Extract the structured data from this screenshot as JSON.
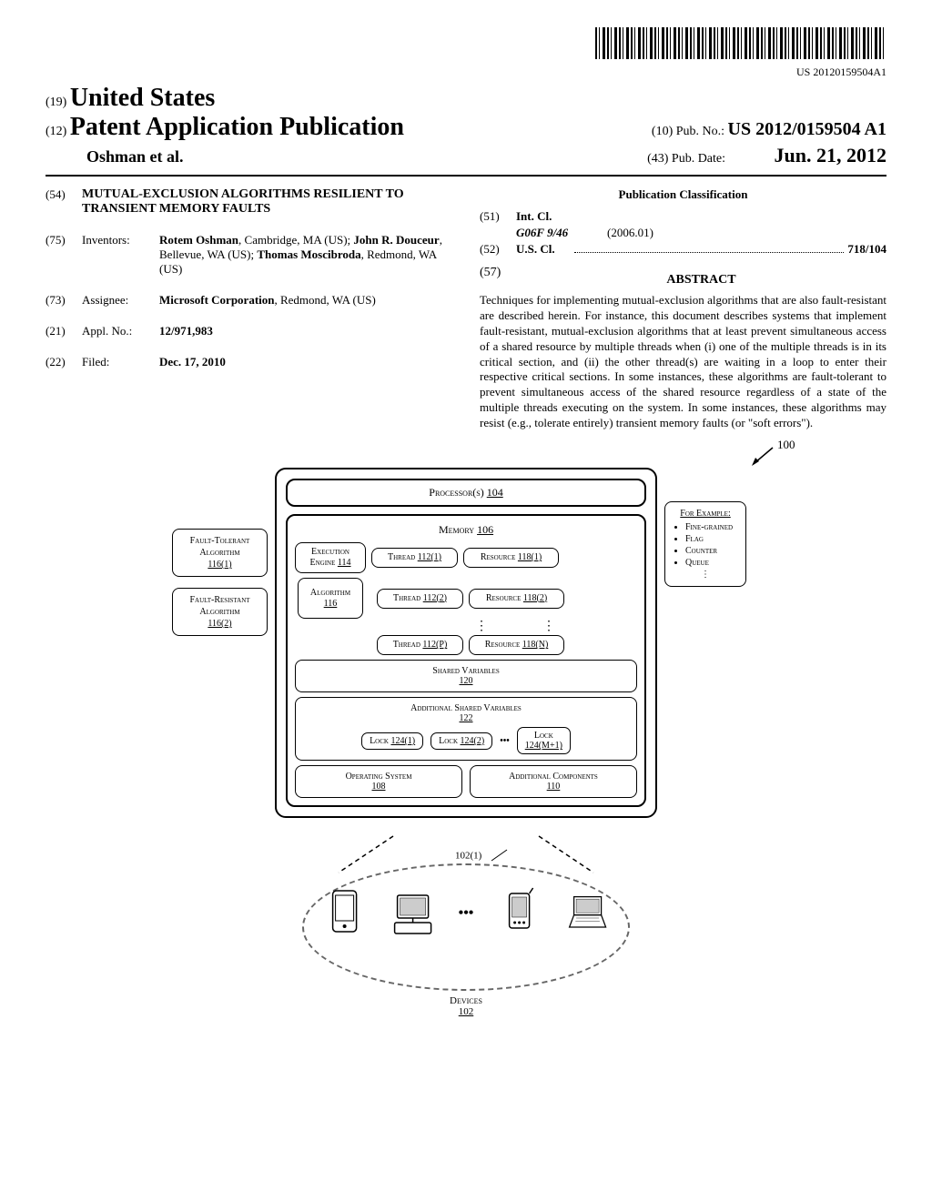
{
  "barcode_number": "US 20120159504A1",
  "header": {
    "country_code": "(19)",
    "country": "United States",
    "pub_code": "(12)",
    "pub_type": "Patent Application Publication",
    "authors": "Oshman et al.",
    "pub_no_code": "(10)",
    "pub_no_label": "Pub. No.:",
    "pub_no": "US 2012/0159504 A1",
    "date_code": "(43)",
    "date_label": "Pub. Date:",
    "date": "Jun. 21, 2012"
  },
  "left_fields": {
    "title_code": "(54)",
    "title": "MUTUAL-EXCLUSION ALGORITHMS RESILIENT TO TRANSIENT MEMORY FAULTS",
    "inventors_code": "(75)",
    "inventors_label": "Inventors:",
    "inventors": "Rotem Oshman, Cambridge, MA (US); John R. Douceur, Bellevue, WA (US); Thomas Moscibroda, Redmond, WA (US)",
    "assignee_code": "(73)",
    "assignee_label": "Assignee:",
    "assignee": "Microsoft Corporation, Redmond, WA (US)",
    "appl_code": "(21)",
    "appl_label": "Appl. No.:",
    "appl_no": "12/971,983",
    "filed_code": "(22)",
    "filed_label": "Filed:",
    "filed": "Dec. 17, 2010"
  },
  "right_fields": {
    "classification_title": "Publication Classification",
    "intcl_code": "(51)",
    "intcl_label": "Int. Cl.",
    "intcl_val": "G06F 9/46",
    "intcl_year": "(2006.01)",
    "uscl_code": "(52)",
    "uscl_label": "U.S. Cl.",
    "uscl_val": "718/104",
    "abstract_code": "(57)",
    "abstract_label": "ABSTRACT",
    "abstract_text": "Techniques for implementing mutual-exclusion algorithms that are also fault-resistant are described herein. For instance, this document describes systems that implement fault-resistant, mutual-exclusion algorithms that at least prevent simultaneous access of a shared resource by multiple threads when (i) one of the multiple threads is in its critical section, and (ii) the other thread(s) are waiting in a loop to enter their respective critical sections. In some instances, these algorithms are fault-tolerant to prevent simultaneous access of the shared resource regardless of a state of the multiple threads executing on the system. In some instances, these algorithms may resist (e.g., tolerate entirely) transient memory faults (or \"soft errors\")."
  },
  "diagram": {
    "ref_100": "100",
    "processors": "Processor(s) 104",
    "memory": "Memory 106",
    "execution_engine": "Execution Engine 114",
    "algorithm": "Algorithm 116",
    "thread1": "Thread 112(1)",
    "thread2": "Thread 112(2)",
    "threadP": "Thread 112(P)",
    "resource1": "Resource 118(1)",
    "resource2": "Resource 118(2)",
    "resourceN": "Resource 118(N)",
    "shared_vars": "Shared Variables 120",
    "additional_shared": "Additional Shared Variables 122",
    "lock1": "Lock 124(1)",
    "lock2": "Lock 124(2)",
    "lockM": "Lock 124(M+1)",
    "os": "Operating System 108",
    "additional_comp": "Additional Components 110",
    "fault_tolerant": "Fault-Tolerant Algorithm 116(1)",
    "fault_resistant": "Fault-Resistant Algorithm 116(2)",
    "for_example": "For Example:",
    "ex1": "Fine-grained",
    "ex2": "Flag",
    "ex3": "Counter",
    "ex4": "Queue",
    "ref_102_1": "102(1)",
    "devices": "Devices 102"
  }
}
